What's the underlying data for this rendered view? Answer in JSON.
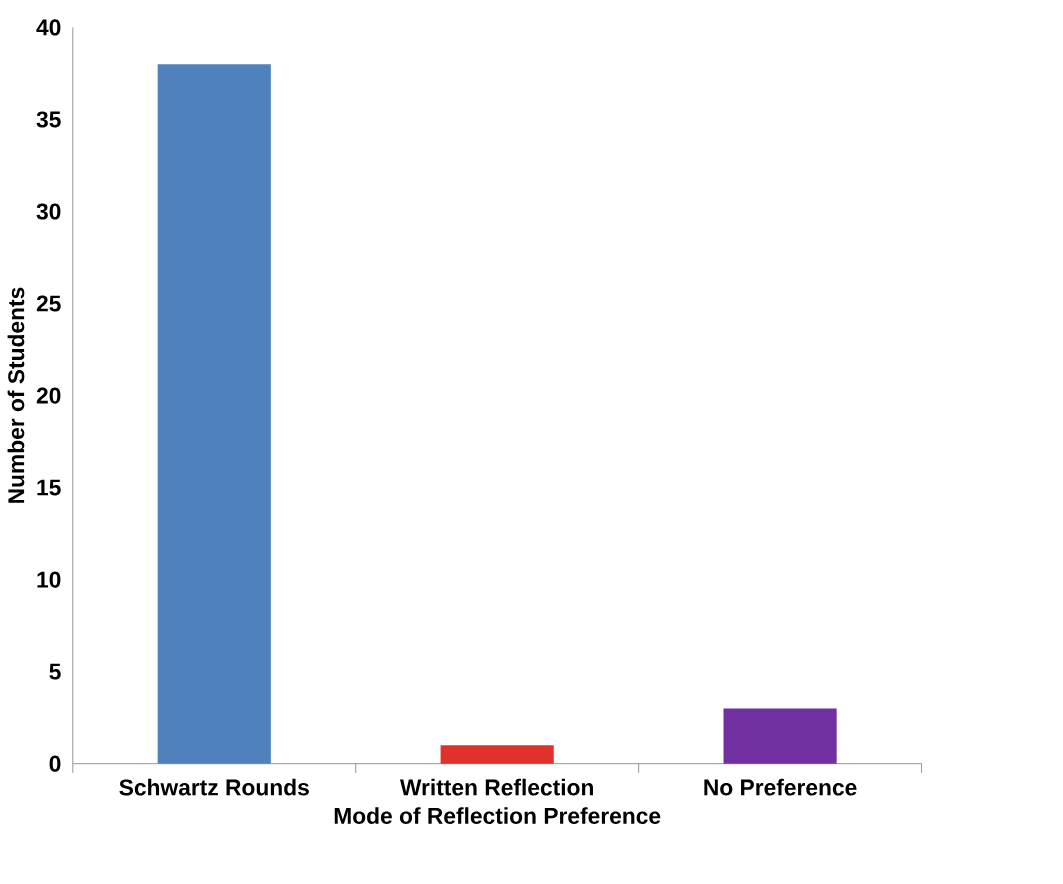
{
  "chart_data": {
    "type": "bar",
    "xlabel": "Mode of Reflection Preference",
    "ylabel": "Number of Students",
    "categories": [
      "Schwartz Rounds",
      "Written Reflection",
      "No Preference"
    ],
    "values": [
      38,
      1,
      3
    ],
    "colors": [
      "#4f81bd",
      "#e0322a",
      "#7030a0"
    ],
    "ylim": [
      0,
      40
    ],
    "yticks": [
      0,
      5,
      10,
      15,
      20,
      25,
      30,
      35,
      40
    ]
  }
}
